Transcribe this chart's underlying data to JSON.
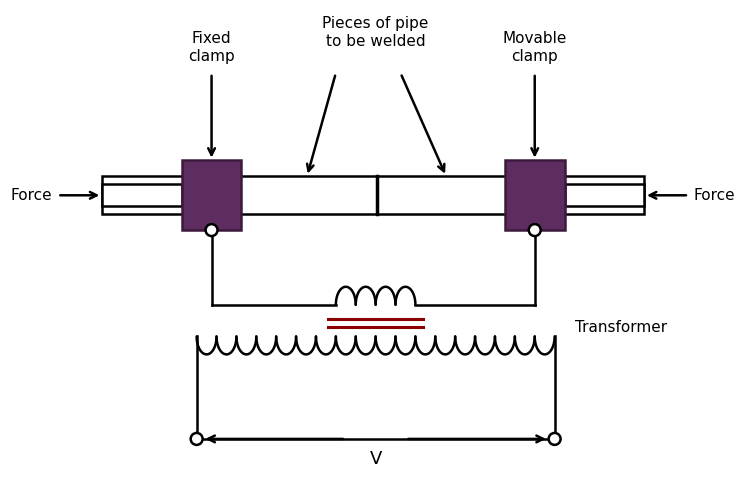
{
  "bg_color": "#ffffff",
  "line_color": "#000000",
  "clamp_color": "#5c2d5e",
  "labels": {
    "fixed_clamp": "Fixed\nclamp",
    "movable_clamp": "Movable\nclamp",
    "pieces": "Pieces of pipe\nto be welded",
    "force_left": "Force",
    "force_right": "Force",
    "transformer": "Transformer",
    "voltage": "V"
  },
  "figw": 7.52,
  "figh": 4.94,
  "dpi": 100
}
